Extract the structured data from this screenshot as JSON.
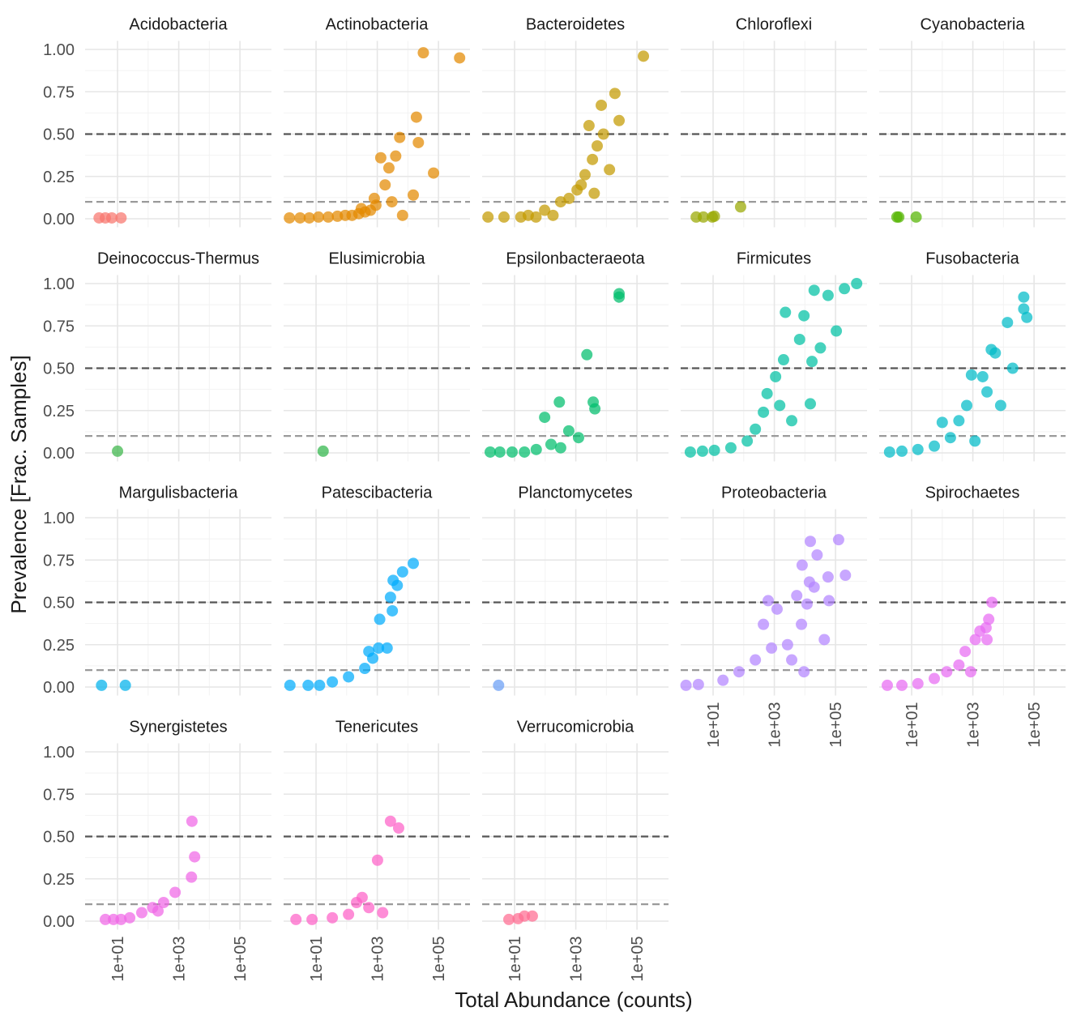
{
  "chart_data": {
    "type": "scatter",
    "x_label": "Total Abundance (counts)",
    "y_label": "Prevalence [Frac. Samples]",
    "xscale": "log",
    "xlim": [
      0.87,
      1070000
    ],
    "ylim": [
      -0.05,
      1.05
    ],
    "xticks": [
      {
        "value": 10,
        "label": "1e+01"
      },
      {
        "value": 1000,
        "label": "1e+03"
      },
      {
        "value": 100000,
        "label": "1e+05"
      }
    ],
    "yticks": [
      {
        "value": 0,
        "label": "0.00"
      },
      {
        "value": 0.25,
        "label": "0.25"
      },
      {
        "value": 0.5,
        "label": "0.50"
      },
      {
        "value": 0.75,
        "label": "0.75"
      },
      {
        "value": 1,
        "label": "1.00"
      }
    ],
    "grid": true,
    "hlines": [
      {
        "y": 0.1,
        "color": "#9a9a9a"
      },
      {
        "y": 0.5,
        "color": "#555555"
      }
    ],
    "panels": [
      {
        "name": "Acidobacteria",
        "color": "#F8766D",
        "x": [
          2.5,
          4,
          6.5,
          13
        ],
        "y": [
          0.005,
          0.005,
          0.005,
          0.005
        ]
      },
      {
        "name": "Actinobacteria",
        "color": "#E38900",
        "x": [
          1.35,
          3,
          6,
          12,
          25,
          50,
          90,
          150,
          250,
          400,
          600,
          900,
          1300,
          2400,
          4000,
          5400,
          6700,
          15000,
          19000,
          22000,
          32000,
          69000,
          490000,
          300,
          800,
          1800,
          3000
        ],
        "y": [
          0.005,
          0.005,
          0.005,
          0.01,
          0.01,
          0.015,
          0.02,
          0.02,
          0.03,
          0.04,
          0.05,
          0.08,
          0.36,
          0.3,
          0.37,
          0.48,
          0.02,
          0.14,
          0.6,
          0.45,
          0.98,
          0.27,
          0.95,
          0.06,
          0.12,
          0.2,
          0.1
        ]
      },
      {
        "name": "Bacteroidetes",
        "color": "#C49A00",
        "x": [
          1.35,
          4.5,
          16,
          28,
          50,
          96,
          180,
          320,
          1100,
          2000,
          2700,
          5000,
          6800,
          12600,
          19000,
          26000,
          162000,
          600,
          1500,
          3500,
          8000,
          4000
        ],
        "y": [
          0.01,
          0.01,
          0.01,
          0.02,
          0.01,
          0.05,
          0.02,
          0.1,
          0.17,
          0.26,
          0.55,
          0.43,
          0.67,
          0.29,
          0.74,
          0.58,
          0.96,
          0.12,
          0.2,
          0.35,
          0.5,
          0.15
        ]
      },
      {
        "name": "Chloroflexi",
        "color": "#99A800",
        "x": [
          2.8,
          4.8,
          9.4,
          11,
          79
        ],
        "y": [
          0.01,
          0.01,
          0.01,
          0.015,
          0.07
        ]
      },
      {
        "name": "Cyanobacteria",
        "color": "#53B400",
        "x": [
          3.3,
          3.8,
          14
        ],
        "y": [
          0.01,
          0.01,
          0.01
        ]
      },
      {
        "name": "Deinococcus-Thermus",
        "color": "#3BB54A",
        "x": [
          10
        ],
        "y": [
          0.01
        ]
      },
      {
        "name": "Elusimicrobia",
        "color": "#2FB64A",
        "x": [
          17
        ],
        "y": [
          0.01
        ]
      },
      {
        "name": "Epsilonbacteraeota",
        "color": "#00BE6C",
        "x": [
          1.6,
          3.3,
          8.3,
          21,
          51,
          96,
          155,
          290,
          320,
          590,
          1230,
          2300,
          3700,
          4200,
          26000,
          26000
        ],
        "y": [
          0.005,
          0.005,
          0.005,
          0.005,
          0.02,
          0.21,
          0.05,
          0.3,
          0.03,
          0.13,
          0.09,
          0.58,
          0.3,
          0.26,
          0.94,
          0.92
        ]
      },
      {
        "name": "Firmicutes",
        "color": "#00C0A3",
        "x": [
          1.8,
          4.5,
          11,
          38,
          130,
          240,
          440,
          580,
          1100,
          1500,
          2000,
          2300,
          3700,
          6700,
          9300,
          15000,
          17000,
          20000,
          32000,
          57000,
          106000,
          195000,
          490000
        ],
        "y": [
          0.005,
          0.01,
          0.015,
          0.03,
          0.07,
          0.14,
          0.24,
          0.35,
          0.45,
          0.28,
          0.55,
          0.83,
          0.19,
          0.67,
          0.81,
          0.29,
          0.54,
          0.96,
          0.62,
          0.93,
          0.72,
          0.97,
          1.0
        ]
      },
      {
        "name": "Fusobacteria",
        "color": "#00BBC8",
        "x": [
          1.9,
          4.8,
          16,
          55,
          100,
          185,
          350,
          630,
          900,
          1170,
          2100,
          2900,
          4000,
          5400,
          8100,
          13500,
          20000,
          46000,
          46000,
          58000
        ],
        "y": [
          0.005,
          0.01,
          0.02,
          0.04,
          0.18,
          0.09,
          0.19,
          0.28,
          0.46,
          0.07,
          0.45,
          0.36,
          0.61,
          0.59,
          0.28,
          0.77,
          0.5,
          0.92,
          0.85,
          0.8
        ]
      },
      {
        "name": "Margulisbacteria",
        "color": "#00B2EC",
        "x": [
          3,
          18
        ],
        "y": [
          0.01,
          0.01
        ]
      },
      {
        "name": "Patescibacteria",
        "color": "#00ACFC",
        "x": [
          1.4,
          5.5,
          13,
          34,
          115,
          390,
          530,
          710,
          1100,
          1200,
          2100,
          2700,
          3100,
          3300,
          4500,
          6700,
          15000
        ],
        "y": [
          0.01,
          0.01,
          0.01,
          0.03,
          0.06,
          0.11,
          0.21,
          0.17,
          0.23,
          0.4,
          0.23,
          0.53,
          0.45,
          0.63,
          0.6,
          0.68,
          0.73
        ]
      },
      {
        "name": "Planctomycetes",
        "color": "#6A9EF5",
        "x": [
          3
        ],
        "y": [
          0.01
        ]
      },
      {
        "name": "Proteobacteria",
        "color": "#B385FF",
        "x": [
          1.3,
          3.3,
          21,
          70,
          240,
          440,
          630,
          810,
          1230,
          2700,
          3700,
          5400,
          7700,
          8100,
          9300,
          11700,
          14000,
          15000,
          20000,
          25000,
          43000,
          57000,
          61000,
          126000,
          210000
        ],
        "y": [
          0.01,
          0.015,
          0.04,
          0.09,
          0.16,
          0.37,
          0.51,
          0.23,
          0.46,
          0.25,
          0.16,
          0.54,
          0.37,
          0.72,
          0.09,
          0.49,
          0.62,
          0.86,
          0.59,
          0.78,
          0.28,
          0.65,
          0.51,
          0.87,
          0.66
        ]
      },
      {
        "name": "Spirochaetes",
        "color": "#E76BF3",
        "x": [
          1.6,
          4.8,
          16,
          55,
          140,
          350,
          560,
          850,
          1200,
          1700,
          2700,
          2900,
          3300,
          4200
        ],
        "y": [
          0.01,
          0.01,
          0.02,
          0.05,
          0.09,
          0.13,
          0.21,
          0.09,
          0.28,
          0.33,
          0.35,
          0.28,
          0.4,
          0.5
        ]
      },
      {
        "name": "Synergistetes",
        "color": "#F066E6",
        "x": [
          4,
          7.4,
          13,
          25,
          62,
          140,
          210,
          320,
          760,
          2600,
          2700,
          3300
        ],
        "y": [
          0.01,
          0.01,
          0.01,
          0.02,
          0.05,
          0.08,
          0.06,
          0.11,
          0.17,
          0.26,
          0.59,
          0.38
        ]
      },
      {
        "name": "Tenericutes",
        "color": "#FD61C8",
        "x": [
          2.2,
          7.4,
          34,
          115,
          210,
          320,
          530,
          1020,
          1500,
          2700,
          5000
        ],
        "y": [
          0.01,
          0.01,
          0.02,
          0.04,
          0.11,
          0.14,
          0.08,
          0.36,
          0.05,
          0.59,
          0.55
        ]
      },
      {
        "name": "Verrucomicrobia",
        "color": "#FF6C91",
        "x": [
          6.5,
          13,
          21,
          38
        ],
        "y": [
          0.01,
          0.015,
          0.03,
          0.03
        ]
      }
    ]
  }
}
